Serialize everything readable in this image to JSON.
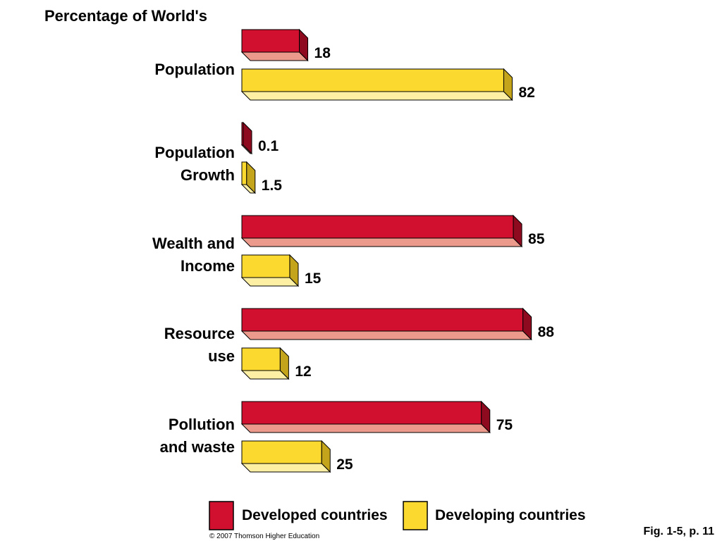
{
  "chart_data": {
    "type": "bar",
    "orientation": "horizontal",
    "title": "Percentage of World's",
    "categories": [
      [
        "Population"
      ],
      [
        "Population",
        "Growth"
      ],
      [
        "Wealth and",
        "Income"
      ],
      [
        "Resource",
        "use"
      ],
      [
        "Pollution",
        "and waste"
      ]
    ],
    "series": [
      {
        "name": "Developed countries",
        "color": "#d0102e",
        "values": [
          18,
          0.1,
          85,
          88,
          75
        ],
        "labels": [
          "18",
          "0.1",
          "85",
          "88",
          "75"
        ]
      },
      {
        "name": "Developing countries",
        "color": "#fcd92f",
        "values": [
          82,
          1.5,
          15,
          12,
          25
        ],
        "labels": [
          "82",
          "1.5",
          "15",
          "12",
          "25"
        ]
      }
    ],
    "legend_position": "bottom",
    "grid": false
  },
  "footer": {
    "fig_ref": "Fig. 1-5, p. 11",
    "copyright": "© 2007 Thomson Higher Education"
  }
}
